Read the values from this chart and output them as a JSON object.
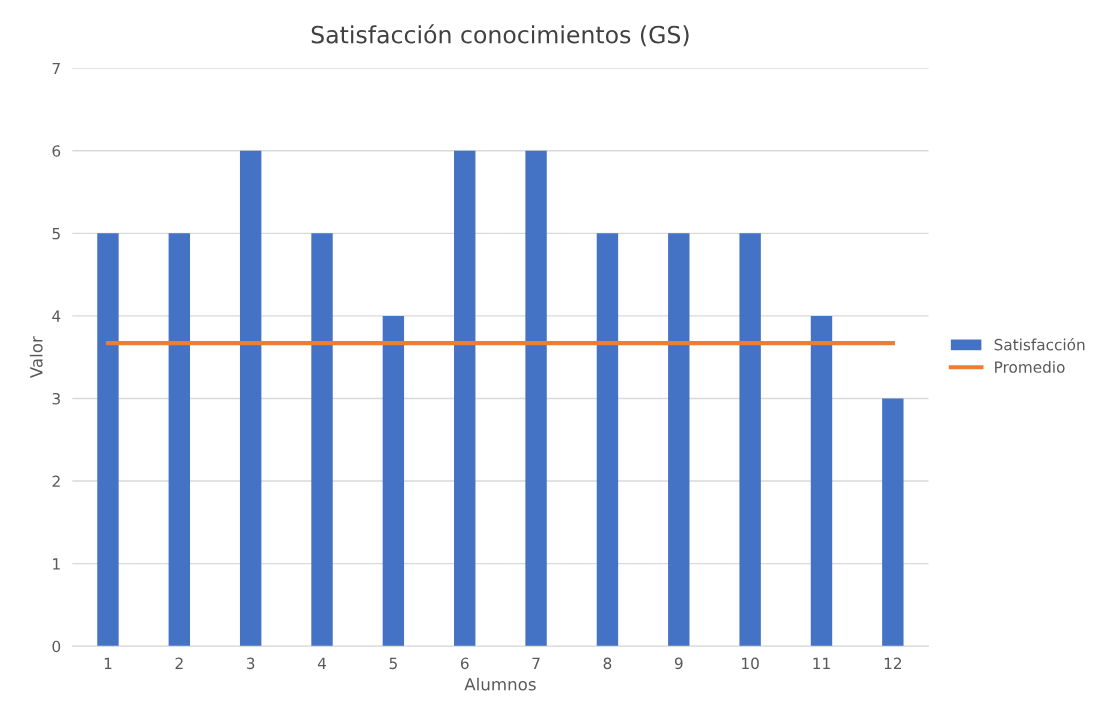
{
  "chart_data": {
    "type": "bar",
    "title": "Satisfacción conocimientos (GS)",
    "xlabel": "Alumnos",
    "ylabel": "Valor",
    "categories": [
      "1",
      "2",
      "3",
      "4",
      "5",
      "6",
      "7",
      "8",
      "9",
      "10",
      "11",
      "12"
    ],
    "series": [
      {
        "name": "Satisfacción",
        "color": "#4472c4",
        "values": [
          5,
          5,
          6,
          5,
          4,
          6,
          6,
          5,
          5,
          5,
          4,
          3
        ]
      },
      {
        "name": "Promedio",
        "type": "line",
        "color": "#ed7d31",
        "values": [
          3.67,
          3.67,
          3.67,
          3.67,
          3.67,
          3.67,
          3.67,
          3.67,
          3.67,
          3.67,
          3.67,
          3.67
        ]
      }
    ],
    "ylim": [
      0,
      7
    ],
    "yticks": [
      0,
      1,
      2,
      3,
      4,
      5,
      6,
      7
    ],
    "grid": "y",
    "legend": "right"
  }
}
